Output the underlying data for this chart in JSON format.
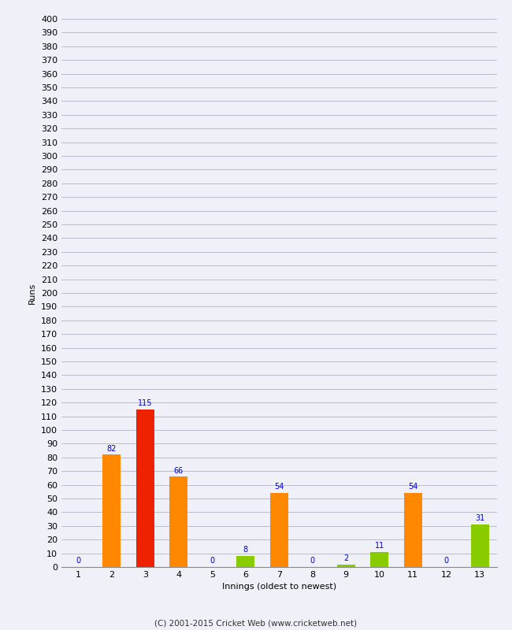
{
  "xlabel": "Innings (oldest to newest)",
  "ylabel": "Runs",
  "categories": [
    1,
    2,
    3,
    4,
    5,
    6,
    7,
    8,
    9,
    10,
    11,
    12,
    13
  ],
  "values": [
    0,
    82,
    115,
    66,
    0,
    8,
    54,
    0,
    2,
    11,
    54,
    0,
    31
  ],
  "colors": [
    "#ff8800",
    "#ff8800",
    "#ee2200",
    "#ff8800",
    "#ff8800",
    "#88cc00",
    "#ff8800",
    "#ff8800",
    "#88cc00",
    "#88cc00",
    "#ff8800",
    "#ff8800",
    "#88cc00"
  ],
  "ylim": [
    0,
    400
  ],
  "ytick_step": 10,
  "ytick_major_step": 10,
  "label_color": "#0000cc",
  "background_color": "#f0f0f8",
  "plot_background": "#f0f0f8",
  "grid_color": "#bbbbcc",
  "footer": "(C) 2001-2015 Cricket Web (www.cricketweb.net)",
  "bar_width": 0.55,
  "label_fontsize": 7,
  "axis_fontsize": 8,
  "ylabel_fontsize": 8,
  "footer_fontsize": 7.5
}
